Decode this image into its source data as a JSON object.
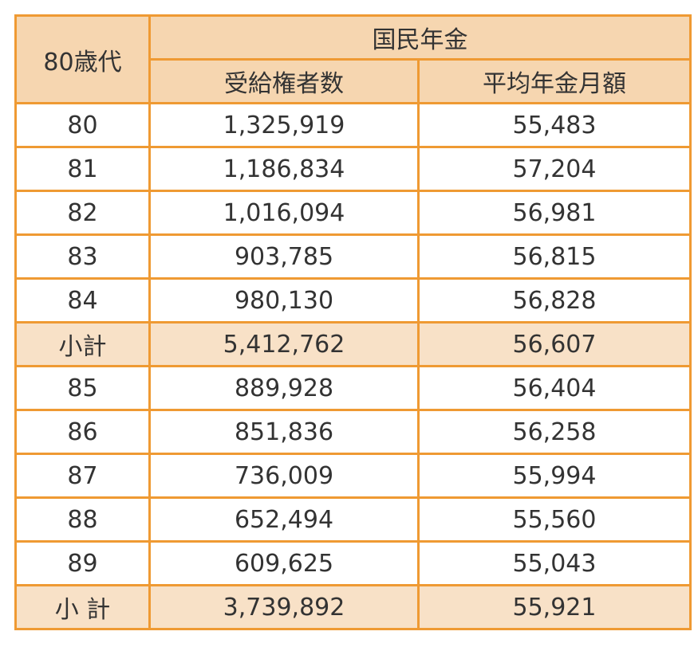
{
  "table": {
    "age_header": "80歳代",
    "group_header": "国民年金",
    "col_recipients": "受給権者数",
    "col_avg_pension": "平均年金月額",
    "rows": [
      {
        "age": "80",
        "recipients": "1,325,919",
        "avg": "55,483",
        "subtotal": false
      },
      {
        "age": "81",
        "recipients": "1,186,834",
        "avg": "57,204",
        "subtotal": false
      },
      {
        "age": "82",
        "recipients": "1,016,094",
        "avg": "56,981",
        "subtotal": false
      },
      {
        "age": "83",
        "recipients": "903,785",
        "avg": "56,815",
        "subtotal": false
      },
      {
        "age": "84",
        "recipients": "980,130",
        "avg": "56,828",
        "subtotal": false
      },
      {
        "age": "小計",
        "recipients": "5,412,762",
        "avg": "56,607",
        "subtotal": true
      },
      {
        "age": "85",
        "recipients": "889,928",
        "avg": "56,404",
        "subtotal": false
      },
      {
        "age": "86",
        "recipients": "851,836",
        "avg": "56,258",
        "subtotal": false
      },
      {
        "age": "87",
        "recipients": "736,009",
        "avg": "55,994",
        "subtotal": false
      },
      {
        "age": "88",
        "recipients": "652,494",
        "avg": "55,560",
        "subtotal": false
      },
      {
        "age": "89",
        "recipients": "609,625",
        "avg": "55,043",
        "subtotal": false
      },
      {
        "age": "小 計",
        "recipients": "3,739,892",
        "avg": "55,921",
        "subtotal": true
      }
    ]
  },
  "colors": {
    "border": "#ef9a33",
    "header_bg": "#f6d6b0",
    "subtotal_bg": "#f8e1c7"
  }
}
